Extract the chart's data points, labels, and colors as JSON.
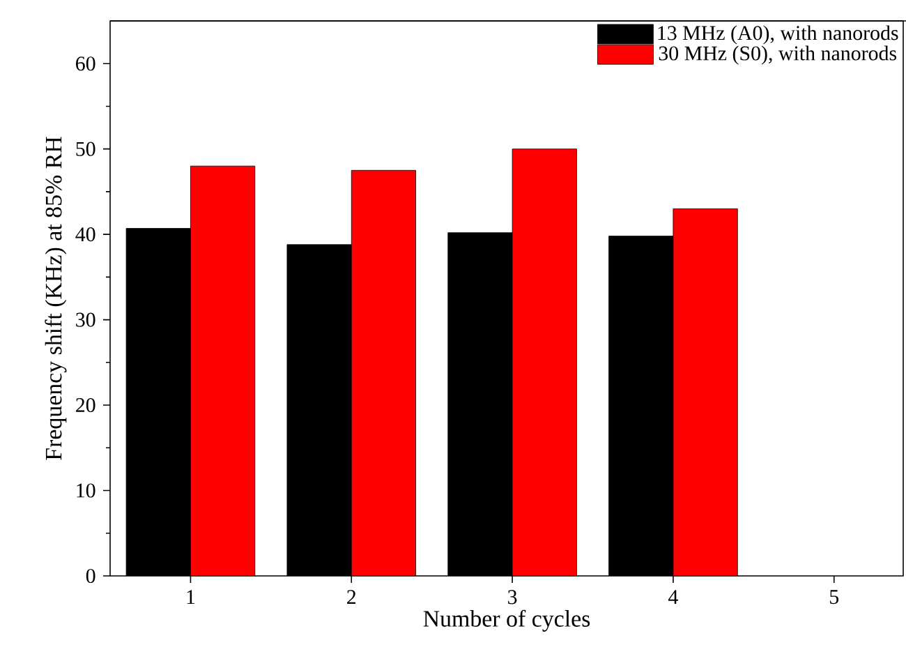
{
  "chart_data": {
    "type": "bar",
    "xlabel": "Number of cycles",
    "ylabel": "Frequency shift (KHz) at 85% RH",
    "categories": [
      "1",
      "2",
      "3",
      "4",
      "5"
    ],
    "series": [
      {
        "name": "13 MHz (A0), with nanorods",
        "color": "#000000",
        "values": [
          40.7,
          38.8,
          40.2,
          39.8,
          null
        ]
      },
      {
        "name": "30 MHz (S0), with nanorods",
        "color": "#ff0000",
        "values": [
          48.0,
          47.5,
          50.0,
          43.0,
          null
        ]
      }
    ],
    "ylim": [
      0,
      65
    ],
    "yticks": [
      0,
      10,
      20,
      30,
      40,
      50,
      60
    ],
    "grid": false,
    "legend": "top right"
  }
}
